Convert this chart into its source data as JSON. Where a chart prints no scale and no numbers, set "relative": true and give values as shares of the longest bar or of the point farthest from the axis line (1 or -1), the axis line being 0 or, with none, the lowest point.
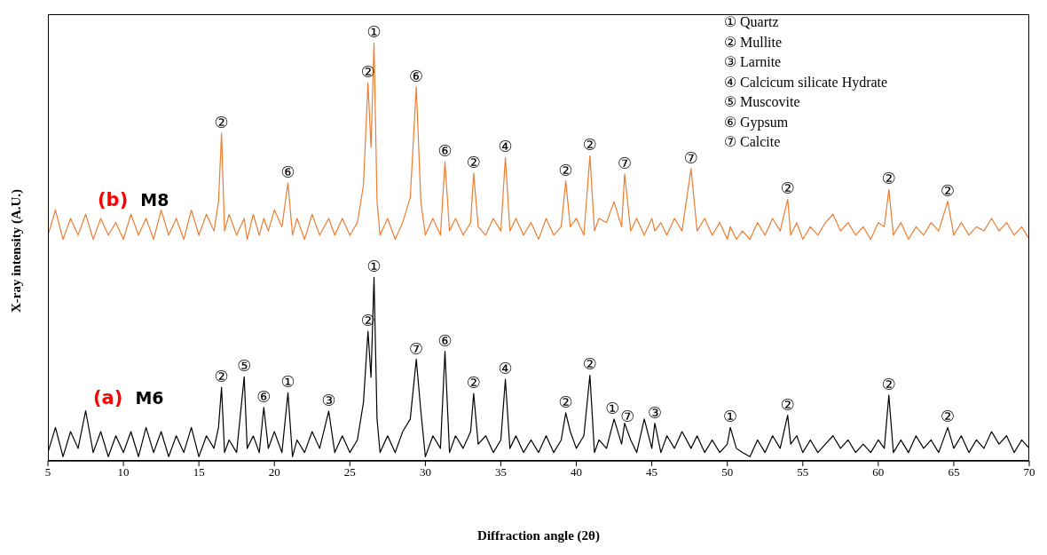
{
  "chart_data": {
    "type": "line",
    "relative": true,
    "xlabel": "Diffraction angle (2θ)",
    "ylabel": "X-ray intensity (A.U.)",
    "xlim": [
      5,
      70
    ],
    "xticks": [
      5,
      10,
      15,
      20,
      25,
      30,
      35,
      40,
      45,
      50,
      55,
      60,
      65,
      70
    ],
    "x": [
      5,
      5.5,
      6,
      6.5,
      7,
      7.5,
      8,
      8.5,
      9,
      9.5,
      10,
      10.5,
      11,
      11.5,
      12,
      12.5,
      13,
      13.5,
      14,
      14.5,
      15,
      15.5,
      16,
      16.3,
      16.5,
      16.7,
      17,
      17.5,
      18,
      18.2,
      18.6,
      19,
      19.3,
      19.6,
      20,
      20.5,
      20.9,
      21.2,
      21.5,
      22,
      22.5,
      23,
      23.6,
      24,
      24.5,
      25,
      25.5,
      25.9,
      26.2,
      26.4,
      26.6,
      26.8,
      27,
      27.5,
      28,
      28.5,
      29,
      29.4,
      29.7,
      30,
      30.5,
      31,
      31.3,
      31.6,
      32,
      32.5,
      33,
      33.2,
      33.5,
      34,
      34.5,
      35,
      35.3,
      35.6,
      36,
      36.5,
      37,
      37.5,
      38,
      38.5,
      39,
      39.3,
      39.6,
      40,
      40.5,
      40.9,
      41.2,
      41.5,
      42,
      42.5,
      43,
      43.2,
      43.6,
      44,
      44.5,
      45,
      45.2,
      45.6,
      46,
      46.5,
      47,
      47.6,
      48,
      48.5,
      49,
      49.5,
      50,
      50.2,
      50.6,
      51,
      51.5,
      52,
      52.5,
      53,
      53.5,
      54,
      54.2,
      54.6,
      55,
      55.5,
      56,
      56.5,
      57,
      57.5,
      58,
      58.5,
      59,
      59.5,
      60,
      60.4,
      60.7,
      61,
      61.5,
      62,
      62.5,
      63,
      63.5,
      64,
      64.6,
      65,
      65.5,
      66,
      66.5,
      67,
      67.5,
      68,
      68.5,
      69,
      69.5,
      70
    ],
    "series": [
      {
        "name": "(a) M6",
        "color": "#000000",
        "values": [
          0.02,
          0.08,
          0.01,
          0.07,
          0.03,
          0.12,
          0.02,
          0.07,
          0.01,
          0.06,
          0.02,
          0.07,
          0.01,
          0.08,
          0.02,
          0.07,
          0.01,
          0.06,
          0.02,
          0.08,
          0.01,
          0.06,
          0.03,
          0.08,
          0.176,
          0.02,
          0.05,
          0.02,
          0.201,
          0.03,
          0.06,
          0.02,
          0.128,
          0.03,
          0.07,
          0.02,
          0.163,
          0.01,
          0.05,
          0.02,
          0.07,
          0.03,
          0.119,
          0.02,
          0.06,
          0.02,
          0.05,
          0.14,
          0.31,
          0.2,
          0.439,
          0.1,
          0.02,
          0.06,
          0.02,
          0.07,
          0.1,
          0.243,
          0.12,
          0.01,
          0.06,
          0.03,
          0.262,
          0.02,
          0.06,
          0.03,
          0.07,
          0.161,
          0.04,
          0.06,
          0.02,
          0.05,
          0.195,
          0.03,
          0.06,
          0.02,
          0.05,
          0.02,
          0.06,
          0.02,
          0.05,
          0.115,
          0.07,
          0.03,
          0.06,
          0.205,
          0.02,
          0.05,
          0.03,
          0.1,
          0.04,
          0.09,
          0.05,
          0.02,
          0.1,
          0.03,
          0.09,
          0.02,
          0.06,
          0.03,
          0.07,
          0.03,
          0.06,
          0.02,
          0.05,
          0.02,
          0.04,
          0.08,
          0.03,
          0.02,
          0.01,
          0.05,
          0.02,
          0.06,
          0.03,
          0.109,
          0.04,
          0.06,
          0.02,
          0.05,
          0.02,
          0.04,
          0.06,
          0.03,
          0.05,
          0.02,
          0.04,
          0.02,
          0.05,
          0.03,
          0.157,
          0.02,
          0.05,
          0.02,
          0.06,
          0.03,
          0.05,
          0.02,
          0.08,
          0.03,
          0.06,
          0.02,
          0.05,
          0.03,
          0.07,
          0.04,
          0.06,
          0.02,
          0.05,
          0.03
        ]
      },
      {
        "name": "(b) M8",
        "color": "#ed7d31",
        "values": [
          0.54,
          0.6,
          0.53,
          0.58,
          0.54,
          0.59,
          0.53,
          0.58,
          0.54,
          0.57,
          0.53,
          0.59,
          0.54,
          0.58,
          0.53,
          0.6,
          0.54,
          0.58,
          0.53,
          0.6,
          0.54,
          0.59,
          0.55,
          0.62,
          0.784,
          0.55,
          0.59,
          0.54,
          0.58,
          0.53,
          0.59,
          0.54,
          0.58,
          0.55,
          0.6,
          0.56,
          0.665,
          0.54,
          0.58,
          0.53,
          0.59,
          0.54,
          0.58,
          0.54,
          0.58,
          0.54,
          0.57,
          0.66,
          0.904,
          0.75,
          1,
          0.62,
          0.54,
          0.58,
          0.53,
          0.57,
          0.63,
          0.895,
          0.62,
          0.54,
          0.58,
          0.54,
          0.716,
          0.55,
          0.58,
          0.54,
          0.57,
          0.688,
          0.56,
          0.54,
          0.58,
          0.55,
          0.726,
          0.55,
          0.58,
          0.54,
          0.57,
          0.53,
          0.58,
          0.54,
          0.56,
          0.67,
          0.56,
          0.58,
          0.54,
          0.73,
          0.55,
          0.58,
          0.57,
          0.62,
          0.56,
          0.686,
          0.55,
          0.58,
          0.54,
          0.58,
          0.55,
          0.57,
          0.54,
          0.58,
          0.55,
          0.699,
          0.55,
          0.58,
          0.54,
          0.57,
          0.53,
          0.56,
          0.53,
          0.55,
          0.53,
          0.57,
          0.54,
          0.58,
          0.55,
          0.626,
          0.54,
          0.57,
          0.53,
          0.56,
          0.54,
          0.57,
          0.59,
          0.55,
          0.57,
          0.54,
          0.56,
          0.53,
          0.57,
          0.56,
          0.649,
          0.54,
          0.57,
          0.53,
          0.56,
          0.54,
          0.57,
          0.55,
          0.621,
          0.54,
          0.57,
          0.54,
          0.56,
          0.55,
          0.58,
          0.55,
          0.57,
          0.54,
          0.56,
          0.53
        ]
      }
    ],
    "annotations": [
      "① Quartz",
      "② Mullite",
      "③ Larnite",
      "④ Calcicum silicate Hydrate",
      "⑤ Muscovite",
      "⑥ Gypsum",
      "⑦ Calcite",
      {
        "text": "②",
        "x": 16.5,
        "y": 0.784
      },
      {
        "text": "⑥",
        "x": 20.9,
        "y": 0.665
      },
      {
        "text": "②",
        "x": 26.2,
        "y": 0.904
      },
      {
        "text": "①",
        "x": 26.6,
        "y": 1
      },
      {
        "text": "⑥",
        "x": 29.4,
        "y": 0.895
      },
      {
        "text": "⑥",
        "x": 31.3,
        "y": 0.716
      },
      {
        "text": "②",
        "x": 33.2,
        "y": 0.688
      },
      {
        "text": "④",
        "x": 35.3,
        "y": 0.726
      },
      {
        "text": "②",
        "x": 39.3,
        "y": 0.67
      },
      {
        "text": "②",
        "x": 40.9,
        "y": 0.73
      },
      {
        "text": "⑦",
        "x": 43.2,
        "y": 0.686
      },
      {
        "text": "⑦",
        "x": 47.6,
        "y": 0.699
      },
      {
        "text": "②",
        "x": 54,
        "y": 0.626
      },
      {
        "text": "②",
        "x": 60.7,
        "y": 0.649
      },
      {
        "text": "②",
        "x": 64.6,
        "y": 0.621
      },
      {
        "text": "②",
        "x": 16.5,
        "y": 0.176
      },
      {
        "text": "⑤",
        "x": 18,
        "y": 0.201
      },
      {
        "text": "⑥",
        "x": 19.3,
        "y": 0.128
      },
      {
        "text": "①",
        "x": 20.9,
        "y": 0.163
      },
      {
        "text": "③",
        "x": 23.6,
        "y": 0.119
      },
      {
        "text": "②",
        "x": 26.2,
        "y": 0.31
      },
      {
        "text": "①",
        "x": 26.6,
        "y": 0.439
      },
      {
        "text": "⑦",
        "x": 29.4,
        "y": 0.243
      },
      {
        "text": "⑥",
        "x": 31.3,
        "y": 0.262
      },
      {
        "text": "②",
        "x": 33.2,
        "y": 0.161
      },
      {
        "text": "④",
        "x": 35.3,
        "y": 0.195
      },
      {
        "text": "②",
        "x": 39.3,
        "y": 0.115
      },
      {
        "text": "②",
        "x": 40.9,
        "y": 0.205
      },
      {
        "text": "①",
        "x": 42.4,
        "y": 0.1
      },
      {
        "text": "⑦",
        "x": 43.4,
        "y": 0.08
      },
      {
        "text": "③",
        "x": 45.2,
        "y": 0.09
      },
      {
        "text": "①",
        "x": 50.2,
        "y": 0.08
      },
      {
        "text": "②",
        "x": 54,
        "y": 0.109
      },
      {
        "text": "②",
        "x": 60.7,
        "y": 0.157
      },
      {
        "text": "②",
        "x": 64.6,
        "y": 0.08
      }
    ]
  }
}
